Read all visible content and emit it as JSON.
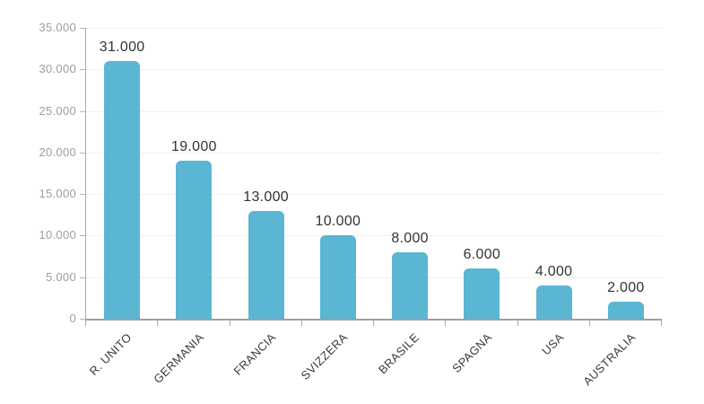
{
  "chart_data": {
    "type": "bar",
    "title": "",
    "xlabel": "",
    "ylabel": "",
    "categories": [
      "R. UNITO",
      "GERMANIA",
      "FRANCIA",
      "SVIZZERA",
      "BRASILE",
      "SPAGNA",
      "USA",
      "AUSTRALIA"
    ],
    "values": [
      31000,
      19000,
      13000,
      10000,
      8000,
      6000,
      4000,
      2000
    ],
    "value_labels": [
      "31.000",
      "19.000",
      "13.000",
      "10.000",
      "8.000",
      "6.000",
      "4.000",
      "2.000"
    ],
    "y_tick_labels": [
      "35.000",
      "30.000",
      "25.000",
      "20.000",
      "15.000",
      "10.000",
      "5.000",
      "0"
    ],
    "ylim": [
      0,
      35000
    ],
    "grid": true,
    "legend": "none",
    "colors": {
      "bar": "#5ab6d3",
      "gridline": "#f5f0e6",
      "axis": "#a8a8a8",
      "value_label": "#333333",
      "y_tick_label": "#9e9e9e",
      "x_tick_label": "#3c3c3c"
    }
  }
}
